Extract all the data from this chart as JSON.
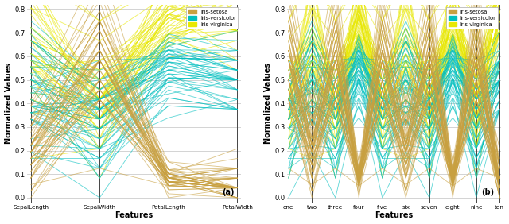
{
  "xlabel": "Features",
  "ylabel": "Normalized Values",
  "features_a": [
    "SepalLength",
    "SepalWidth",
    "PetalLength",
    "PetalWidth"
  ],
  "features_b": [
    "one",
    "two",
    "three",
    "four",
    "five",
    "six",
    "seven",
    "eight",
    "nine",
    "ten"
  ],
  "classes": [
    "Iris-setosa",
    "Iris-versicolor",
    "Iris-virginica"
  ],
  "colors": {
    "Iris-setosa": "#C8A040",
    "Iris-versicolor": "#00BFBF",
    "Iris-virginica": "#E8E800"
  },
  "ylim": [
    -0.02,
    0.82
  ],
  "yticks": [
    0.0,
    0.1,
    0.2,
    0.3,
    0.4,
    0.5,
    0.6,
    0.7,
    0.8
  ],
  "alpha": 0.6,
  "linewidth": 0.65,
  "bg_color": "#ffffff",
  "grid_color": "#e0e0e0",
  "iris_sepal_length": [
    5.1,
    4.9,
    4.7,
    4.6,
    5.0,
    5.4,
    4.6,
    5.0,
    4.4,
    4.9,
    5.4,
    4.8,
    4.8,
    4.3,
    5.8,
    5.7,
    5.4,
    5.1,
    5.7,
    5.1,
    5.4,
    5.1,
    4.6,
    5.1,
    4.8,
    5.0,
    5.0,
    5.2,
    5.2,
    4.7,
    4.8,
    5.4,
    5.2,
    5.5,
    4.9,
    5.0,
    5.5,
    4.9,
    4.4,
    5.1,
    5.0,
    4.5,
    4.4,
    5.0,
    5.1,
    4.8,
    5.1,
    4.6,
    5.3,
    5.0,
    7.0,
    6.4,
    6.9,
    5.5,
    6.5,
    5.7,
    6.3,
    4.9,
    6.6,
    5.2,
    5.0,
    5.9,
    6.0,
    6.1,
    5.6,
    6.7,
    5.6,
    5.8,
    6.2,
    5.6,
    5.9,
    6.1,
    6.3,
    6.1,
    6.4,
    6.6,
    6.8,
    6.7,
    6.0,
    5.7,
    5.5,
    5.5,
    5.8,
    6.0,
    5.4,
    6.0,
    6.7,
    6.3,
    5.6,
    5.5,
    5.5,
    6.1,
    5.8,
    5.0,
    5.6,
    5.7,
    5.7,
    6.2,
    5.1,
    5.7,
    6.3,
    5.8,
    7.1,
    6.3,
    6.5,
    7.6,
    4.9,
    7.3,
    6.7,
    7.2,
    6.5,
    6.4,
    6.8,
    5.7,
    5.8,
    6.4,
    6.5,
    7.7,
    7.7,
    6.0,
    6.9,
    5.6,
    7.7,
    6.3,
    6.7,
    7.2,
    6.2,
    6.1,
    6.4,
    7.2,
    7.4,
    7.9,
    6.4,
    6.3,
    6.1,
    7.7,
    6.3,
    6.4,
    6.0,
    6.9,
    6.7,
    6.9,
    5.8,
    6.8,
    6.7,
    6.7,
    6.3,
    6.5,
    6.2,
    5.9
  ],
  "iris_sepal_width": [
    3.5,
    3.0,
    3.2,
    3.1,
    3.6,
    3.9,
    3.4,
    3.4,
    2.9,
    3.1,
    3.7,
    3.4,
    3.0,
    3.0,
    4.0,
    4.4,
    3.9,
    3.5,
    3.8,
    3.8,
    3.4,
    3.7,
    3.6,
    3.3,
    3.4,
    3.0,
    3.4,
    3.5,
    3.4,
    3.2,
    3.1,
    3.4,
    4.1,
    4.2,
    3.1,
    3.2,
    3.5,
    3.6,
    3.0,
    3.4,
    3.5,
    2.3,
    3.2,
    3.5,
    3.8,
    3.0,
    3.8,
    3.2,
    3.7,
    3.3,
    3.2,
    3.2,
    3.1,
    2.3,
    2.8,
    2.8,
    3.3,
    2.4,
    2.9,
    2.7,
    2.0,
    3.0,
    2.2,
    2.9,
    2.9,
    3.1,
    3.0,
    2.7,
    2.2,
    2.5,
    3.2,
    2.8,
    2.5,
    2.8,
    2.9,
    3.0,
    2.8,
    3.0,
    2.9,
    2.6,
    2.4,
    2.4,
    2.7,
    2.7,
    3.0,
    3.4,
    3.1,
    2.3,
    3.0,
    2.5,
    2.6,
    3.0,
    2.6,
    2.3,
    2.7,
    3.0,
    2.9,
    2.9,
    2.5,
    2.8,
    3.3,
    2.7,
    3.0,
    2.9,
    3.0,
    3.0,
    2.5,
    2.9,
    2.5,
    3.6,
    3.2,
    2.7,
    3.0,
    2.5,
    2.8,
    3.2,
    3.0,
    3.8,
    2.6,
    2.2,
    3.2,
    2.8,
    2.8,
    2.7,
    3.3,
    3.2,
    2.8,
    3.0,
    2.8,
    3.0,
    2.8,
    3.8,
    2.8,
    2.8,
    2.6,
    3.0,
    3.4,
    3.1,
    3.0,
    3.1,
    3.1,
    3.1,
    2.7,
    3.2,
    3.3,
    3.0,
    2.5,
    3.0,
    3.4,
    3.0
  ],
  "iris_petal_length": [
    1.4,
    1.4,
    1.3,
    1.5,
    1.4,
    1.7,
    1.4,
    1.5,
    1.4,
    1.5,
    1.5,
    1.6,
    1.4,
    1.1,
    1.2,
    1.5,
    1.3,
    1.4,
    1.7,
    1.5,
    1.7,
    1.5,
    1.0,
    1.7,
    1.9,
    1.6,
    1.6,
    1.5,
    1.4,
    1.6,
    1.6,
    1.5,
    1.5,
    1.4,
    1.5,
    1.2,
    1.3,
    1.4,
    1.3,
    1.5,
    1.3,
    1.3,
    1.3,
    1.6,
    1.9,
    1.4,
    1.6,
    1.4,
    1.5,
    1.4,
    4.7,
    4.5,
    4.9,
    4.0,
    4.6,
    4.5,
    4.7,
    3.3,
    4.6,
    3.9,
    3.5,
    4.2,
    4.0,
    4.7,
    3.6,
    4.4,
    4.5,
    4.1,
    4.5,
    3.9,
    4.8,
    4.0,
    4.9,
    4.7,
    4.3,
    4.4,
    4.8,
    5.0,
    4.5,
    3.5,
    3.8,
    3.7,
    3.9,
    5.1,
    4.5,
    4.5,
    4.7,
    4.4,
    4.1,
    4.0,
    4.4,
    4.6,
    4.0,
    3.3,
    4.2,
    4.2,
    4.2,
    4.3,
    3.0,
    4.1,
    6.0,
    5.1,
    5.9,
    5.6,
    5.8,
    6.6,
    4.5,
    6.3,
    5.8,
    6.1,
    5.1,
    5.3,
    5.5,
    5.0,
    5.1,
    5.3,
    5.5,
    6.7,
    6.9,
    5.0,
    5.7,
    4.9,
    6.7,
    4.9,
    5.7,
    6.0,
    4.8,
    4.9,
    5.6,
    5.8,
    6.1,
    6.4,
    5.6,
    5.1,
    5.6,
    6.1,
    5.6,
    5.5,
    4.8,
    5.4,
    5.6,
    5.1,
    5.9,
    5.7,
    5.2,
    5.0,
    5.2,
    5.4,
    5.1,
    5.1
  ],
  "iris_petal_width": [
    0.2,
    0.2,
    0.2,
    0.2,
    0.2,
    0.4,
    0.3,
    0.2,
    0.2,
    0.1,
    0.2,
    0.2,
    0.1,
    0.1,
    0.2,
    0.4,
    0.4,
    0.3,
    0.3,
    0.3,
    0.2,
    0.4,
    0.2,
    0.5,
    0.2,
    0.2,
    0.4,
    0.2,
    0.2,
    0.2,
    0.2,
    0.4,
    0.1,
    0.2,
    0.2,
    0.2,
    0.2,
    0.1,
    0.2,
    0.3,
    0.3,
    0.3,
    0.2,
    0.6,
    0.4,
    0.3,
    0.2,
    0.2,
    0.2,
    0.2,
    1.4,
    1.5,
    1.5,
    1.3,
    1.5,
    1.3,
    1.6,
    1.0,
    1.3,
    1.4,
    1.0,
    1.5,
    1.0,
    1.4,
    1.3,
    1.4,
    1.5,
    1.0,
    1.5,
    1.1,
    1.8,
    1.3,
    1.5,
    1.2,
    1.3,
    1.4,
    1.4,
    1.7,
    1.5,
    1.0,
    1.1,
    1.0,
    1.2,
    1.6,
    1.5,
    1.6,
    1.5,
    1.3,
    1.3,
    1.3,
    1.2,
    1.4,
    1.2,
    1.0,
    1.3,
    1.2,
    1.3,
    1.3,
    1.1,
    1.3,
    2.5,
    1.9,
    2.1,
    1.8,
    2.2,
    2.1,
    1.7,
    1.8,
    1.8,
    2.5,
    2.0,
    1.9,
    2.1,
    2.0,
    2.4,
    2.3,
    1.8,
    2.2,
    2.3,
    1.5,
    2.3,
    2.0,
    2.0,
    1.8,
    2.1,
    1.8,
    1.8,
    2.1,
    1.6,
    1.9,
    2.0,
    2.2,
    1.5,
    1.4,
    2.3,
    2.4,
    1.8,
    1.8,
    2.1,
    2.4,
    2.3,
    1.9,
    2.3,
    2.5,
    2.3,
    1.9,
    2.0,
    2.3,
    1.8,
    2.2
  ],
  "iris_species": [
    0,
    0,
    0,
    0,
    0,
    0,
    0,
    0,
    0,
    0,
    0,
    0,
    0,
    0,
    0,
    0,
    0,
    0,
    0,
    0,
    0,
    0,
    0,
    0,
    0,
    0,
    0,
    0,
    0,
    0,
    0,
    0,
    0,
    0,
    0,
    0,
    0,
    0,
    0,
    0,
    0,
    0,
    0,
    0,
    0,
    0,
    0,
    0,
    0,
    0,
    1,
    1,
    1,
    1,
    1,
    1,
    1,
    1,
    1,
    1,
    1,
    1,
    1,
    1,
    1,
    1,
    1,
    1,
    1,
    1,
    1,
    1,
    1,
    1,
    1,
    1,
    1,
    1,
    1,
    1,
    1,
    1,
    1,
    1,
    1,
    1,
    1,
    1,
    1,
    1,
    1,
    1,
    1,
    1,
    1,
    1,
    1,
    1,
    1,
    1,
    2,
    2,
    2,
    2,
    2,
    2,
    2,
    2,
    2,
    2,
    2,
    2,
    2,
    2,
    2,
    2,
    2,
    2,
    2,
    2,
    2,
    2,
    2,
    2,
    2,
    2,
    2,
    2,
    2,
    2,
    2,
    2,
    2,
    2,
    2,
    2,
    2,
    2,
    2,
    2,
    2,
    2,
    2,
    2,
    2,
    2,
    2,
    2,
    2,
    2
  ]
}
